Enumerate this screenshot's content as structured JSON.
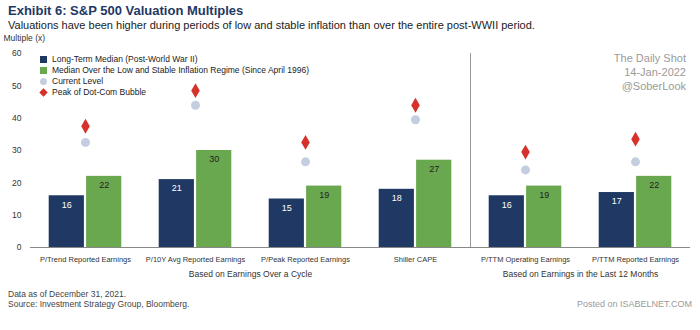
{
  "chart_data": {
    "type": "bar",
    "title": "Exhibit 6: S&P 500 Valuation Multiples",
    "subtitle": "Valuations have been higher during periods of low and stable inflation than over the entire post-WWII period.",
    "y_label": "Multiple (x)",
    "categories": [
      "P/Trend Reported Earnings",
      "P/10Y Avg Reported Earnings",
      "P/Peak Reported Earnings",
      "Shiller CAPE",
      "P/TTM Operating Earnings",
      "P/TTM Reported Earnings"
    ],
    "groups": [
      {
        "label": "Based on Earnings Over a Cycle",
        "categories": [
          "P/Trend Reported Earnings",
          "P/10Y Avg Reported Earnings",
          "P/Peak Reported Earnings",
          "Shiller CAPE"
        ]
      },
      {
        "label": "Based on Earnings in the Last 12 Months",
        "categories": [
          "P/TTM Operating Earnings",
          "P/TTM Reported Earnings"
        ]
      }
    ],
    "series": [
      {
        "name": "Long-Term Median (Post-World War II)",
        "type": "bar",
        "color": "#1f3864",
        "values": [
          16,
          21,
          15,
          18,
          16,
          17
        ]
      },
      {
        "name": "Median Over the Low and Stable Inflation Regime (Since April 1996)",
        "type": "bar",
        "color": "#6aa84f",
        "values": [
          22,
          30,
          19,
          27,
          19,
          22
        ]
      },
      {
        "name": "Current Level",
        "type": "scatter",
        "marker": "circle",
        "color": "#c5cde0",
        "values": [
          32.5,
          44,
          26.5,
          39.5,
          24,
          26.5
        ]
      },
      {
        "name": "Peak of Dot-Com Bubble",
        "type": "scatter",
        "marker": "diamond",
        "color": "#d6312b",
        "values": [
          37.5,
          48.5,
          32.5,
          44,
          29.5,
          33.5
        ]
      }
    ],
    "ylim": [
      0,
      60
    ],
    "yticks": [
      0,
      10,
      20,
      30,
      40,
      50,
      60
    ],
    "grid": false,
    "legend": "top-left",
    "data_labels": true,
    "footnotes": [
      "Data as of December 31, 2021.",
      "Source: Investment Strategy Group, Bloomberg."
    ],
    "watermarks": [
      "The Daily Shot",
      "14-Jan-2022",
      "@SoberLook",
      "Posted on",
      "ISABELNET.COM"
    ]
  }
}
